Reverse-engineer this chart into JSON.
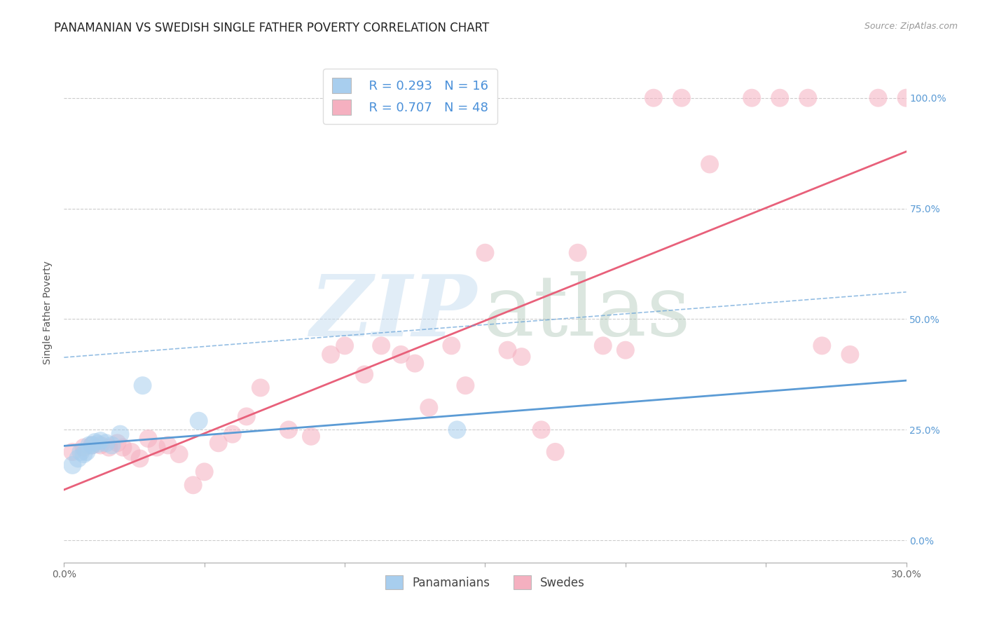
{
  "title": "PANAMANIAN VS SWEDISH SINGLE FATHER POVERTY CORRELATION CHART",
  "source": "Source: ZipAtlas.com",
  "ylabel": "Single Father Poverty",
  "xlim": [
    0.0,
    0.3
  ],
  "ylim": [
    -0.05,
    1.08
  ],
  "xtick_pos": [
    0.0,
    0.05,
    0.1,
    0.15,
    0.2,
    0.25,
    0.3
  ],
  "xtick_labels": [
    "0.0%",
    "",
    "",
    "",
    "",
    "",
    "30.0%"
  ],
  "ytick_positions": [
    0.0,
    0.25,
    0.5,
    0.75,
    1.0
  ],
  "ytick_labels_right": [
    "0.0%",
    "25.0%",
    "50.0%",
    "75.0%",
    "100.0%"
  ],
  "pan_R": "0.293",
  "pan_N": "16",
  "swe_R": "0.707",
  "swe_N": "48",
  "legend_labels": [
    "Panamanians",
    "Swedes"
  ],
  "pan_color": "#A8CEEE",
  "swe_color": "#F5B0C0",
  "pan_line_color": "#5B9BD5",
  "swe_line_color": "#E8607A",
  "pan_x": [
    0.003,
    0.005,
    0.006,
    0.007,
    0.008,
    0.009,
    0.01,
    0.011,
    0.012,
    0.013,
    0.015,
    0.017,
    0.02,
    0.028,
    0.048,
    0.14
  ],
  "pan_y": [
    0.17,
    0.185,
    0.2,
    0.195,
    0.2,
    0.215,
    0.215,
    0.222,
    0.218,
    0.225,
    0.22,
    0.215,
    0.24,
    0.35,
    0.27,
    0.25
  ],
  "swe_x": [
    0.003,
    0.007,
    0.01,
    0.013,
    0.016,
    0.019,
    0.021,
    0.024,
    0.027,
    0.03,
    0.033,
    0.037,
    0.041,
    0.046,
    0.05,
    0.055,
    0.06,
    0.065,
    0.07,
    0.08,
    0.088,
    0.095,
    0.1,
    0.107,
    0.113,
    0.12,
    0.125,
    0.13,
    0.138,
    0.143,
    0.15,
    0.158,
    0.163,
    0.17,
    0.175,
    0.183,
    0.192,
    0.2,
    0.21,
    0.22,
    0.23,
    0.245,
    0.255,
    0.265,
    0.27,
    0.28,
    0.29,
    0.3
  ],
  "swe_y": [
    0.2,
    0.21,
    0.215,
    0.215,
    0.21,
    0.22,
    0.21,
    0.2,
    0.185,
    0.23,
    0.21,
    0.215,
    0.195,
    0.125,
    0.155,
    0.22,
    0.24,
    0.28,
    0.345,
    0.25,
    0.235,
    0.42,
    0.44,
    0.375,
    0.44,
    0.42,
    0.4,
    0.3,
    0.44,
    0.35,
    0.65,
    0.43,
    0.415,
    0.25,
    0.2,
    0.65,
    0.44,
    0.43,
    1.0,
    1.0,
    0.85,
    1.0,
    1.0,
    1.0,
    0.44,
    0.42,
    1.0,
    1.0
  ],
  "background_color": "#FFFFFF",
  "grid_color": "#CCCCCC",
  "title_fontsize": 12,
  "axis_label_fontsize": 10,
  "tick_fontsize": 10,
  "right_tick_color": "#5B9BD5"
}
